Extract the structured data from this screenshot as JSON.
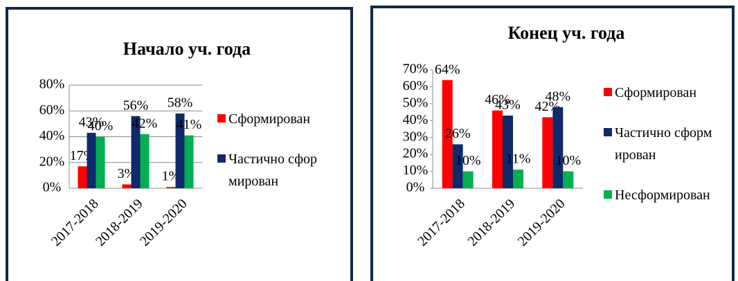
{
  "chart_data": [
    {
      "type": "bar",
      "title": "Начало уч. года",
      "categories": [
        "2017-2018",
        "2018-2019",
        "2019-2020"
      ],
      "series": [
        {
          "name": "Сформирован",
          "color": "#ff0000",
          "values": [
            17,
            3,
            1
          ],
          "value_labels": [
            "17%",
            "3%",
            "1%"
          ]
        },
        {
          "name": "Частично сформирован",
          "color": "#0f2a6b",
          "values": [
            43,
            56,
            58
          ],
          "value_labels": [
            "43%",
            "56%",
            "58%"
          ]
        },
        {
          "color": "#00b050",
          "values": [
            40,
            42,
            41
          ],
          "value_labels": [
            "40%",
            "42%",
            "41%"
          ]
        }
      ],
      "ylim": [
        0,
        80
      ],
      "yticks": [
        {
          "value": 0,
          "label": "0%"
        },
        {
          "value": 20,
          "label": "20%"
        },
        {
          "value": 40,
          "label": "40%"
        },
        {
          "value": 60,
          "label": "60%"
        },
        {
          "value": 80,
          "label": "80%"
        }
      ],
      "grid": true,
      "legend": "right"
    },
    {
      "type": "bar",
      "title": "Конец уч. года",
      "categories": [
        "2017-2018",
        "2018-2019",
        "2019-2020"
      ],
      "series": [
        {
          "name": "Сформирован",
          "color": "#ff0000",
          "values": [
            64,
            46,
            42
          ],
          "value_labels": [
            "64%",
            "46%",
            "42%"
          ]
        },
        {
          "name": "Частично сформирован",
          "color": "#0f2a6b",
          "values": [
            26,
            43,
            48
          ],
          "value_labels": [
            "26%",
            "43%",
            "48%"
          ]
        },
        {
          "name": "Несформирован",
          "color": "#00b050",
          "values": [
            10,
            11,
            10
          ],
          "value_labels": [
            "10%",
            "11%",
            "10%"
          ]
        }
      ],
      "ylim": [
        0,
        70
      ],
      "yticks": [
        {
          "value": 0,
          "label": "0%"
        },
        {
          "value": 10,
          "label": "10%"
        },
        {
          "value": 20,
          "label": "20%"
        },
        {
          "value": 30,
          "label": "30%"
        },
        {
          "value": 40,
          "label": "40%"
        },
        {
          "value": 50,
          "label": "50%"
        },
        {
          "value": 60,
          "label": "60%"
        },
        {
          "value": 70,
          "label": "70%"
        }
      ],
      "grid": false,
      "legend": "right"
    }
  ]
}
